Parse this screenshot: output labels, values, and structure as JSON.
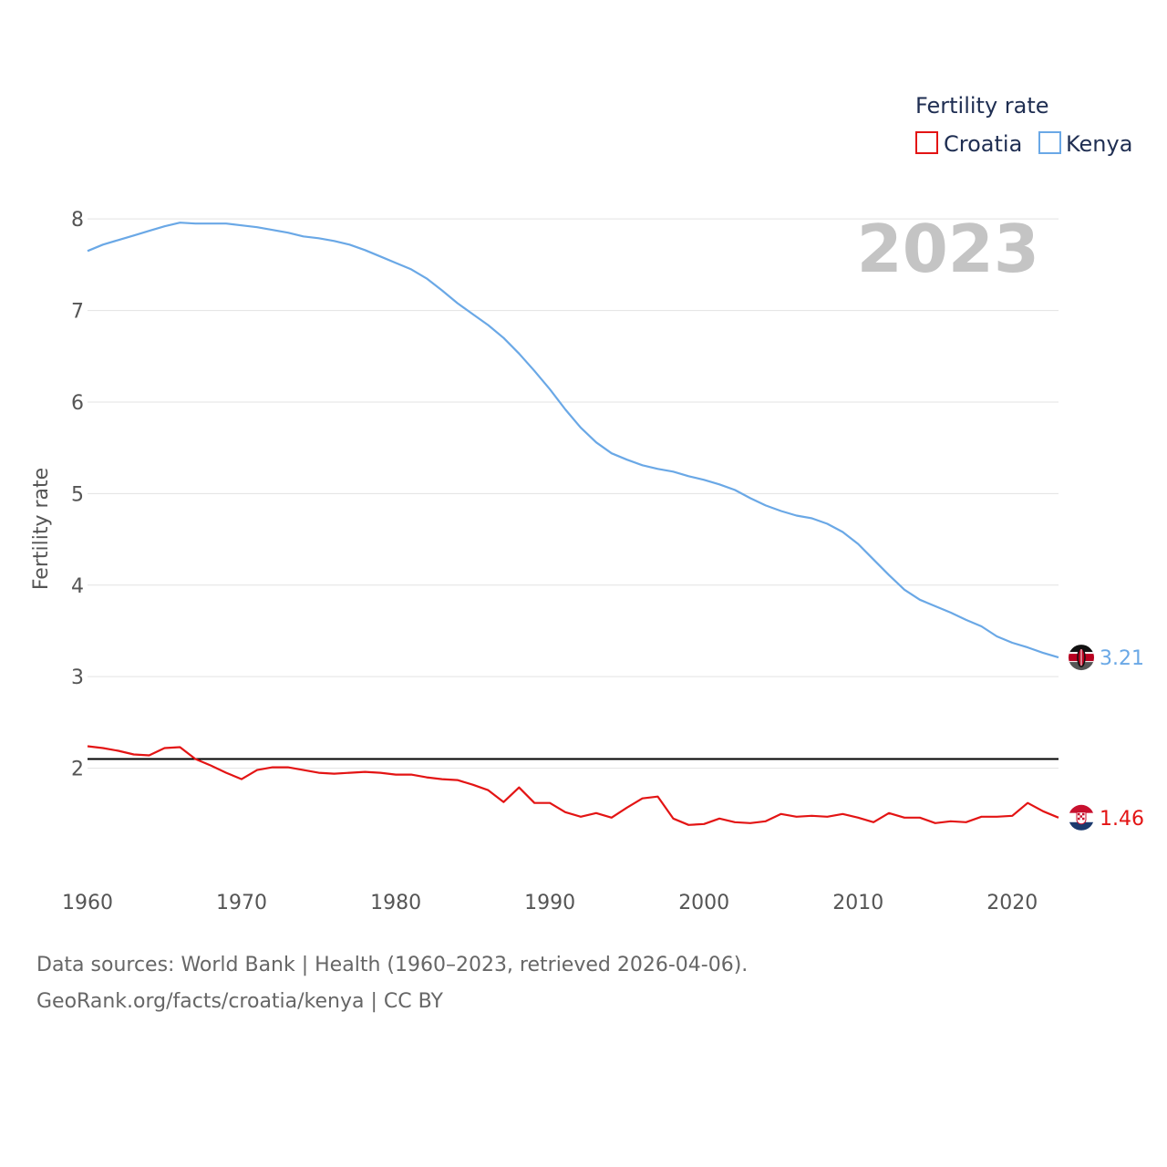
{
  "colors": {
    "croatia": "#e31414",
    "kenya": "#6aa8e6",
    "reference": "#000000",
    "grid": "#e3e3e3"
  },
  "chart_data": {
    "type": "line",
    "ylabel": "Fertility rate",
    "xlabel": "",
    "year_label": "2023",
    "ylim": [
      0.95,
      8.45
    ],
    "xlim": [
      1960,
      2023
    ],
    "x_ticks": [
      1960,
      1970,
      1980,
      1990,
      2000,
      2010,
      2020
    ],
    "y_ticks": [
      2,
      3,
      4,
      5,
      6,
      7,
      8
    ],
    "reference_line": 2.1,
    "legend": {
      "title": "Fertility rate",
      "position": "top-right",
      "items": [
        "Croatia",
        "Kenya"
      ]
    },
    "x": [
      1960,
      1961,
      1962,
      1963,
      1964,
      1965,
      1966,
      1967,
      1968,
      1969,
      1970,
      1971,
      1972,
      1973,
      1974,
      1975,
      1976,
      1977,
      1978,
      1979,
      1980,
      1981,
      1982,
      1983,
      1984,
      1985,
      1986,
      1987,
      1988,
      1989,
      1990,
      1991,
      1992,
      1993,
      1994,
      1995,
      1996,
      1997,
      1998,
      1999,
      2000,
      2001,
      2002,
      2003,
      2004,
      2005,
      2006,
      2007,
      2008,
      2009,
      2010,
      2011,
      2012,
      2013,
      2014,
      2015,
      2016,
      2017,
      2018,
      2019,
      2020,
      2021,
      2022,
      2023
    ],
    "series": [
      {
        "name": "Croatia",
        "end_label": "1.46",
        "values": [
          2.24,
          2.22,
          2.19,
          2.15,
          2.14,
          2.22,
          2.23,
          2.1,
          2.03,
          1.95,
          1.88,
          1.98,
          2.01,
          2.01,
          1.98,
          1.95,
          1.94,
          1.95,
          1.96,
          1.95,
          1.93,
          1.93,
          1.9,
          1.88,
          1.87,
          1.82,
          1.76,
          1.63,
          1.79,
          1.62,
          1.62,
          1.52,
          1.47,
          1.51,
          1.46,
          1.57,
          1.67,
          1.69,
          1.45,
          1.38,
          1.39,
          1.45,
          1.41,
          1.4,
          1.42,
          1.5,
          1.47,
          1.48,
          1.47,
          1.5,
          1.46,
          1.41,
          1.51,
          1.46,
          1.46,
          1.4,
          1.42,
          1.41,
          1.47,
          1.47,
          1.48,
          1.62,
          1.53,
          1.46
        ]
      },
      {
        "name": "Kenya",
        "end_label": "3.21",
        "values": [
          7.65,
          7.72,
          7.77,
          7.82,
          7.87,
          7.92,
          7.96,
          7.95,
          7.95,
          7.95,
          7.93,
          7.91,
          7.88,
          7.85,
          7.81,
          7.79,
          7.76,
          7.72,
          7.66,
          7.59,
          7.52,
          7.45,
          7.35,
          7.22,
          7.08,
          6.96,
          6.84,
          6.7,
          6.53,
          6.34,
          6.14,
          5.92,
          5.72,
          5.56,
          5.44,
          5.37,
          5.31,
          5.27,
          5.24,
          5.19,
          5.15,
          5.1,
          5.04,
          4.95,
          4.87,
          4.81,
          4.76,
          4.73,
          4.67,
          4.58,
          4.45,
          4.28,
          4.11,
          3.95,
          3.84,
          3.77,
          3.7,
          3.62,
          3.55,
          3.44,
          3.37,
          3.32,
          3.26,
          3.21
        ]
      }
    ]
  },
  "footer": {
    "source": "Data sources: World Bank | Health (1960–2023, retrieved 2026-04-06).",
    "credit": "GeoRank.org/facts/croatia/kenya | CC BY"
  }
}
